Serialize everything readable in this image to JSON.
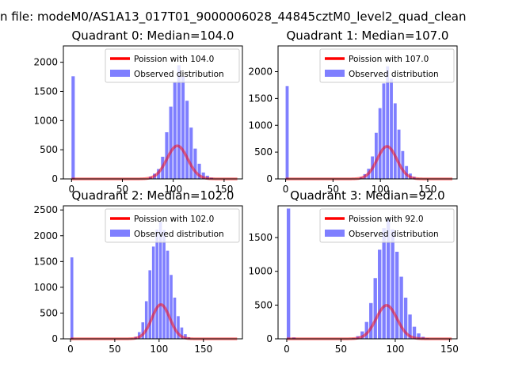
{
  "figure": {
    "suptitle": "n file: modeM0/AS1A13_017T01_9000006028_44845cztM0_level2_quad_clean"
  },
  "chart_data": [
    {
      "type": "bar",
      "title": "Quadrant 0: Median=104.0",
      "xlim": [
        -8,
        168
      ],
      "ylim": [
        0,
        2280
      ],
      "xticks": [
        0,
        50,
        100,
        150
      ],
      "yticks": [
        0,
        500,
        1000,
        1500,
        2000
      ],
      "median": 104.0,
      "poisson_total": 14500,
      "fit_x_max": 163,
      "legend": {
        "placement": "top-right",
        "entries": [
          "Poission with 104.0",
          "Observed distribution"
        ]
      },
      "bins": [
        [
          0,
          1760
        ],
        [
          72,
          5
        ],
        [
          76,
          40
        ],
        [
          80,
          90
        ],
        [
          84,
          170
        ],
        [
          88,
          380
        ],
        [
          92,
          800
        ],
        [
          96,
          1240
        ],
        [
          100,
          1660
        ],
        [
          104,
          1950
        ],
        [
          108,
          1760
        ],
        [
          112,
          1340
        ],
        [
          116,
          880
        ],
        [
          120,
          520
        ],
        [
          124,
          260
        ],
        [
          128,
          110
        ],
        [
          132,
          55
        ],
        [
          136,
          20
        ],
        [
          140,
          5
        ]
      ]
    },
    {
      "type": "bar",
      "title": "Quadrant 1: Median=107.0",
      "xlim": [
        -8,
        181
      ],
      "ylim": [
        0,
        2480
      ],
      "xticks": [
        0,
        50,
        100,
        150
      ],
      "yticks": [
        0,
        500,
        1000,
        1500,
        2000
      ],
      "median": 107.0,
      "poisson_total": 15700,
      "fit_x_max": 176,
      "legend": {
        "placement": "top-right",
        "entries": [
          "Poission with 107.0",
          "Observed distribution"
        ]
      },
      "bins": [
        [
          0,
          1730
        ],
        [
          74,
          5
        ],
        [
          78,
          35
        ],
        [
          82,
          90
        ],
        [
          86,
          190
        ],
        [
          90,
          420
        ],
        [
          94,
          860
        ],
        [
          98,
          1320
        ],
        [
          102,
          1780
        ],
        [
          106,
          2100
        ],
        [
          110,
          1870
        ],
        [
          114,
          1410
        ],
        [
          118,
          920
        ],
        [
          122,
          520
        ],
        [
          126,
          240
        ],
        [
          130,
          100
        ],
        [
          134,
          40
        ],
        [
          138,
          10
        ]
      ]
    },
    {
      "type": "bar",
      "title": "Quadrant 2: Median=102.0",
      "xlim": [
        -8,
        194
      ],
      "ylim": [
        0,
        2580
      ],
      "xticks": [
        0,
        50,
        100,
        150
      ],
      "yticks": [
        0,
        500,
        1000,
        1500,
        2000,
        2500
      ],
      "median": 102.0,
      "poisson_total": 16800,
      "fit_x_max": 188,
      "legend": {
        "placement": "top-right",
        "entries": [
          "Poission with 102.0",
          "Observed distribution"
        ]
      },
      "bins": [
        [
          0,
          1580
        ],
        [
          68,
          10
        ],
        [
          72,
          40
        ],
        [
          76,
          130
        ],
        [
          80,
          320
        ],
        [
          84,
          730
        ],
        [
          88,
          1330
        ],
        [
          92,
          1790
        ],
        [
          96,
          2120
        ],
        [
          100,
          2270
        ],
        [
          104,
          2110
        ],
        [
          108,
          1710
        ],
        [
          112,
          1240
        ],
        [
          116,
          800
        ],
        [
          120,
          440
        ],
        [
          124,
          220
        ],
        [
          128,
          90
        ],
        [
          132,
          30
        ]
      ]
    },
    {
      "type": "bar",
      "title": "Quadrant 3: Median=92.0",
      "xlim": [
        -8,
        157
      ],
      "ylim": [
        0,
        1970
      ],
      "xticks": [
        0,
        50,
        100,
        150
      ],
      "yticks": [
        0,
        500,
        1000,
        1500
      ],
      "median": 92.0,
      "poisson_total": 11900,
      "fit_x_max": 152,
      "legend": {
        "placement": "top-right",
        "entries": [
          "Poission with 92.0",
          "Observed distribution"
        ]
      },
      "bins": [
        [
          0,
          1930
        ],
        [
          5,
          20
        ],
        [
          60,
          10
        ],
        [
          64,
          40
        ],
        [
          68,
          110
        ],
        [
          72,
          250
        ],
        [
          76,
          530
        ],
        [
          80,
          900
        ],
        [
          84,
          1320
        ],
        [
          88,
          1640
        ],
        [
          92,
          1780
        ],
        [
          96,
          1620
        ],
        [
          100,
          1290
        ],
        [
          104,
          920
        ],
        [
          108,
          610
        ],
        [
          112,
          360
        ],
        [
          116,
          180
        ],
        [
          120,
          80
        ],
        [
          124,
          30
        ],
        [
          128,
          10
        ]
      ]
    }
  ]
}
